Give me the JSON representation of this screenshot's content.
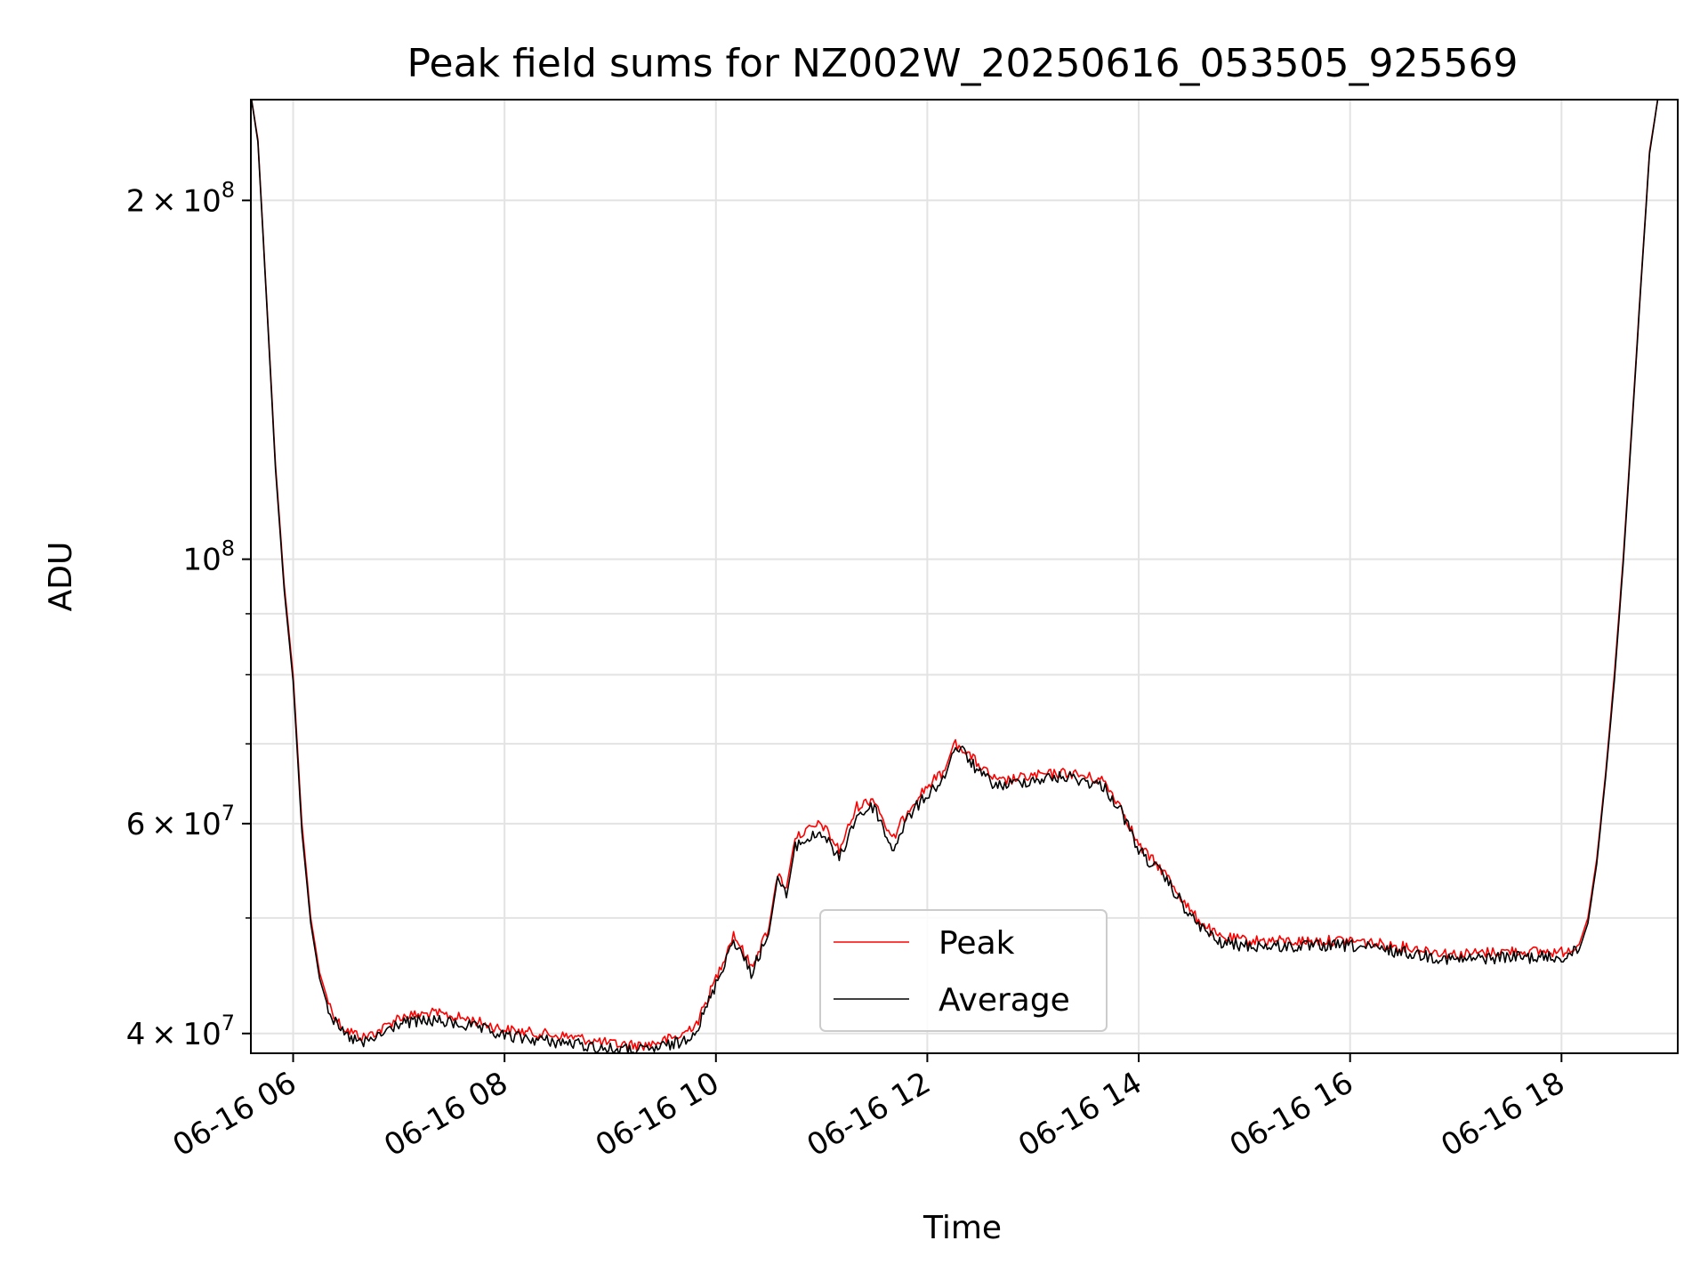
{
  "chart_data": {
    "type": "line",
    "title": "Peak field sums for NZ002W_20250616_053505_925569",
    "xlabel": "Time",
    "ylabel": "ADU",
    "x_range": [
      "2025-06-16 05:36",
      "2025-06-16 19:06"
    ],
    "y_range": [
      38500000,
      243000000
    ],
    "y_scale": "log",
    "x_ticks": [
      {
        "x": "2025-06-16 06:00",
        "label": "06-16 06"
      },
      {
        "x": "2025-06-16 08:00",
        "label": "06-16 08"
      },
      {
        "x": "2025-06-16 10:00",
        "label": "06-16 10"
      },
      {
        "x": "2025-06-16 12:00",
        "label": "06-16 12"
      },
      {
        "x": "2025-06-16 14:00",
        "label": "06-16 14"
      },
      {
        "x": "2025-06-16 16:00",
        "label": "06-16 16"
      },
      {
        "x": "2025-06-16 18:00",
        "label": "06-16 18"
      }
    ],
    "y_major_ticks": [
      {
        "y": 40000000,
        "mant": "4",
        "exp": "7"
      },
      {
        "y": 60000000,
        "mant": "6",
        "exp": "7"
      },
      {
        "y": 100000000,
        "mant": "",
        "exp": "8"
      },
      {
        "y": 200000000,
        "mant": "2",
        "exp": "8"
      }
    ],
    "y_minor_grid": [
      50000000,
      70000000,
      80000000,
      90000000
    ],
    "grid": true,
    "legend_position": "lower center",
    "series": [
      {
        "name": "Peak",
        "color": "#ff0000",
        "points": [
          [
            "2025-06-16 05:36",
            245000000
          ],
          [
            "2025-06-16 05:40",
            225000000
          ],
          [
            "2025-06-16 05:45",
            165000000
          ],
          [
            "2025-06-16 05:50",
            120000000
          ],
          [
            "2025-06-16 05:55",
            95000000
          ],
          [
            "2025-06-16 06:00",
            80000000
          ],
          [
            "2025-06-16 06:05",
            60000000
          ],
          [
            "2025-06-16 06:10",
            50000000
          ],
          [
            "2025-06-16 06:15",
            45000000
          ],
          [
            "2025-06-16 06:20",
            42500000
          ],
          [
            "2025-06-16 06:25",
            41000000
          ],
          [
            "2025-06-16 06:30",
            40300000
          ],
          [
            "2025-06-16 06:40",
            39700000
          ],
          [
            "2025-06-16 06:50",
            40300000
          ],
          [
            "2025-06-16 07:00",
            41300000
          ],
          [
            "2025-06-16 07:20",
            41600000
          ],
          [
            "2025-06-16 07:40",
            41100000
          ],
          [
            "2025-06-16 08:00",
            40300000
          ],
          [
            "2025-06-16 08:20",
            40000000
          ],
          [
            "2025-06-16 08:40",
            39700000
          ],
          [
            "2025-06-16 09:00",
            39200000
          ],
          [
            "2025-06-16 09:20",
            39100000
          ],
          [
            "2025-06-16 09:40",
            39800000
          ],
          [
            "2025-06-16 09:50",
            41000000
          ],
          [
            "2025-06-16 10:00",
            44500000
          ],
          [
            "2025-06-16 10:10",
            48500000
          ],
          [
            "2025-06-16 10:15",
            47000000
          ],
          [
            "2025-06-16 10:20",
            45500000
          ],
          [
            "2025-06-16 10:30",
            49000000
          ],
          [
            "2025-06-16 10:35",
            54500000
          ],
          [
            "2025-06-16 10:40",
            53000000
          ],
          [
            "2025-06-16 10:45",
            58500000
          ],
          [
            "2025-06-16 11:00",
            60000000
          ],
          [
            "2025-06-16 11:10",
            57000000
          ],
          [
            "2025-06-16 11:20",
            62000000
          ],
          [
            "2025-06-16 11:30",
            63000000
          ],
          [
            "2025-06-16 11:40",
            58000000
          ],
          [
            "2025-06-16 11:50",
            62000000
          ],
          [
            "2025-06-16 12:00",
            64500000
          ],
          [
            "2025-06-16 12:10",
            66500000
          ],
          [
            "2025-06-16 12:15",
            70000000
          ],
          [
            "2025-06-16 12:20",
            69500000
          ],
          [
            "2025-06-16 12:30",
            67000000
          ],
          [
            "2025-06-16 12:40",
            65000000
          ],
          [
            "2025-06-16 13:00",
            65800000
          ],
          [
            "2025-06-16 13:20",
            66200000
          ],
          [
            "2025-06-16 13:40",
            65200000
          ],
          [
            "2025-06-16 13:50",
            62000000
          ],
          [
            "2025-06-16 14:00",
            57500000
          ],
          [
            "2025-06-16 14:15",
            54500000
          ],
          [
            "2025-06-16 14:30",
            50500000
          ],
          [
            "2025-06-16 14:45",
            48200000
          ],
          [
            "2025-06-16 15:00",
            47900000
          ],
          [
            "2025-06-16 15:30",
            47800000
          ],
          [
            "2025-06-16 16:00",
            47900000
          ],
          [
            "2025-06-16 16:30",
            47300000
          ],
          [
            "2025-06-16 17:00",
            46600000
          ],
          [
            "2025-06-16 17:30",
            46900000
          ],
          [
            "2025-06-16 18:00",
            46800000
          ],
          [
            "2025-06-16 18:10",
            47500000
          ],
          [
            "2025-06-16 18:15",
            50000000
          ],
          [
            "2025-06-16 18:20",
            56000000
          ],
          [
            "2025-06-16 18:25",
            66000000
          ],
          [
            "2025-06-16 18:30",
            80000000
          ],
          [
            "2025-06-16 18:35",
            100000000
          ],
          [
            "2025-06-16 18:40",
            130000000
          ],
          [
            "2025-06-16 18:45",
            170000000
          ],
          [
            "2025-06-16 18:50",
            220000000
          ],
          [
            "2025-06-16 18:55",
            245000000
          ]
        ]
      },
      {
        "name": "Average",
        "color": "#000000",
        "points": [
          [
            "2025-06-16 05:36",
            245000000
          ],
          [
            "2025-06-16 05:40",
            224000000
          ],
          [
            "2025-06-16 05:45",
            164000000
          ],
          [
            "2025-06-16 05:50",
            119000000
          ],
          [
            "2025-06-16 05:55",
            94000000
          ],
          [
            "2025-06-16 06:00",
            79000000
          ],
          [
            "2025-06-16 06:05",
            59000000
          ],
          [
            "2025-06-16 06:10",
            49500000
          ],
          [
            "2025-06-16 06:15",
            44500000
          ],
          [
            "2025-06-16 06:20",
            42000000
          ],
          [
            "2025-06-16 06:25",
            40500000
          ],
          [
            "2025-06-16 06:30",
            39800000
          ],
          [
            "2025-06-16 06:40",
            39200000
          ],
          [
            "2025-06-16 06:50",
            39900000
          ],
          [
            "2025-06-16 07:00",
            40800000
          ],
          [
            "2025-06-16 07:20",
            41000000
          ],
          [
            "2025-06-16 07:40",
            40600000
          ],
          [
            "2025-06-16 08:00",
            39800000
          ],
          [
            "2025-06-16 08:20",
            39500000
          ],
          [
            "2025-06-16 08:40",
            39200000
          ],
          [
            "2025-06-16 09:00",
            38800000
          ],
          [
            "2025-06-16 09:20",
            38700000
          ],
          [
            "2025-06-16 09:40",
            39300000
          ],
          [
            "2025-06-16 09:50",
            40500000
          ],
          [
            "2025-06-16 10:00",
            44000000
          ],
          [
            "2025-06-16 10:10",
            48000000
          ],
          [
            "2025-06-16 10:15",
            46500000
          ],
          [
            "2025-06-16 10:20",
            45000000
          ],
          [
            "2025-06-16 10:30",
            48500000
          ],
          [
            "2025-06-16 10:35",
            54000000
          ],
          [
            "2025-06-16 10:40",
            52000000
          ],
          [
            "2025-06-16 10:45",
            57500000
          ],
          [
            "2025-06-16 11:00",
            59000000
          ],
          [
            "2025-06-16 11:10",
            56000000
          ],
          [
            "2025-06-16 11:20",
            61000000
          ],
          [
            "2025-06-16 11:30",
            62000000
          ],
          [
            "2025-06-16 11:40",
            57000000
          ],
          [
            "2025-06-16 11:50",
            61000000
          ],
          [
            "2025-06-16 12:00",
            63500000
          ],
          [
            "2025-06-16 12:10",
            65500000
          ],
          [
            "2025-06-16 12:15",
            69500000
          ],
          [
            "2025-06-16 12:20",
            69000000
          ],
          [
            "2025-06-16 12:30",
            66000000
          ],
          [
            "2025-06-16 12:40",
            64500000
          ],
          [
            "2025-06-16 13:00",
            65300000
          ],
          [
            "2025-06-16 13:20",
            65700000
          ],
          [
            "2025-06-16 13:40",
            64500000
          ],
          [
            "2025-06-16 13:50",
            61500000
          ],
          [
            "2025-06-16 14:00",
            57000000
          ],
          [
            "2025-06-16 14:15",
            54000000
          ],
          [
            "2025-06-16 14:30",
            50000000
          ],
          [
            "2025-06-16 14:45",
            47700000
          ],
          [
            "2025-06-16 15:00",
            47400000
          ],
          [
            "2025-06-16 15:30",
            47300000
          ],
          [
            "2025-06-16 16:00",
            47400000
          ],
          [
            "2025-06-16 16:30",
            46800000
          ],
          [
            "2025-06-16 17:00",
            46100000
          ],
          [
            "2025-06-16 17:30",
            46400000
          ],
          [
            "2025-06-16 18:00",
            46300000
          ],
          [
            "2025-06-16 18:10",
            47000000
          ],
          [
            "2025-06-16 18:15",
            49500000
          ],
          [
            "2025-06-16 18:20",
            55500000
          ],
          [
            "2025-06-16 18:25",
            65500000
          ],
          [
            "2025-06-16 18:30",
            79000000
          ],
          [
            "2025-06-16 18:35",
            99000000
          ],
          [
            "2025-06-16 18:40",
            129000000
          ],
          [
            "2025-06-16 18:45",
            169000000
          ],
          [
            "2025-06-16 18:50",
            219000000
          ],
          [
            "2025-06-16 18:55",
            245000000
          ]
        ]
      }
    ]
  }
}
